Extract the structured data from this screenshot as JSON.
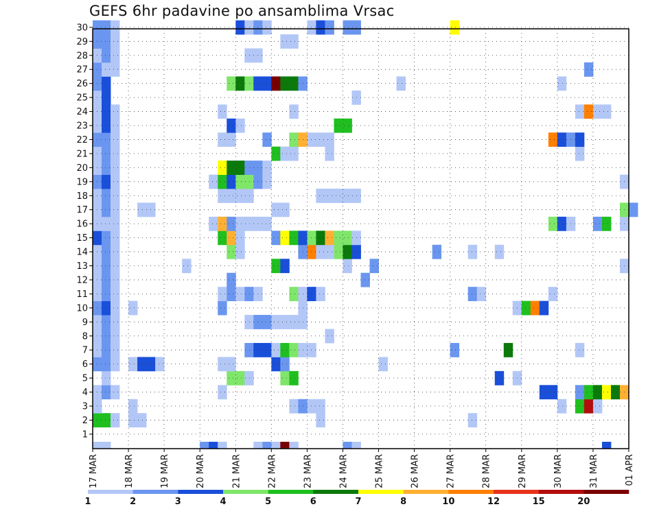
{
  "title": "GEFS 6hr padavine po ansamblima Vrsac",
  "chart_data": {
    "type": "heatmap",
    "title": "GEFS 6hr padavine po ansamblima Vrsac",
    "y_ticks": [
      "1",
      "2",
      "3",
      "4",
      "5",
      "6",
      "7",
      "8",
      "9",
      "10",
      "11",
      "12",
      "13",
      "14",
      "15",
      "16",
      "17",
      "18",
      "19",
      "20",
      "21",
      "22",
      "23",
      "24",
      "25",
      "26",
      "27",
      "28",
      "29",
      "30"
    ],
    "x_ticks": [
      "17 MAR",
      "18 MAR",
      "19 MAR",
      "20 MAR",
      "21 MAR",
      "22 MAR",
      "23 MAR",
      "24 MAR",
      "25 MAR",
      "26 MAR",
      "27 MAR",
      "28 MAR",
      "29 MAR",
      "30 MAR",
      "31 MAR",
      "01 APR"
    ],
    "colorbar": {
      "labels": [
        "1",
        "2",
        "3",
        "4",
        "5",
        "6",
        "7",
        "8",
        "10",
        "12",
        "15",
        "20"
      ],
      "colors": [
        "#b3c7f7",
        "#6a96f0",
        "#1a4fd9",
        "#7fe66a",
        "#1fbf1f",
        "#0b7a0b",
        "#ffff00",
        "#ffb032",
        "#ff7f00",
        "#e8321b",
        "#b30d0d",
        "#7a0000"
      ]
    },
    "grid": true,
    "steps_per_day": 4,
    "colour_scale": [
      "#b3c7f7",
      "#6a96f0",
      "#1a4fd9",
      "#7fe66a",
      "#1fbf1f",
      "#0b7a0b",
      "#ffff00",
      "#ffb032",
      "#ff7f00",
      "#e8321b",
      "#b30d0d",
      "#7a0000"
    ],
    "member_rows": {
      "30": [
        [
          0,
          2,
          2
        ],
        [
          2,
          1,
          1
        ],
        [
          16,
          1,
          3
        ],
        [
          17,
          1,
          1
        ],
        [
          18,
          1,
          2
        ],
        [
          19,
          1,
          1
        ],
        [
          24,
          1,
          1
        ],
        [
          25,
          1,
          3
        ],
        [
          26,
          1,
          2
        ],
        [
          28,
          2,
          2
        ],
        [
          40,
          1,
          7
        ]
      ],
      "29": [
        [
          0,
          2,
          2
        ],
        [
          2,
          1,
          1
        ],
        [
          21,
          2,
          1
        ]
      ],
      "28": [
        [
          0,
          1,
          1
        ],
        [
          1,
          1,
          2
        ],
        [
          2,
          1,
          1
        ],
        [
          17,
          2,
          1
        ]
      ],
      "27": [
        [
          0,
          1,
          2
        ],
        [
          1,
          2,
          1
        ],
        [
          55,
          1,
          2
        ]
      ],
      "26": [
        [
          0,
          1,
          2
        ],
        [
          1,
          1,
          3
        ],
        [
          15,
          1,
          4
        ],
        [
          16,
          1,
          6
        ],
        [
          17,
          1,
          4
        ],
        [
          18,
          2,
          3
        ],
        [
          20,
          1,
          12
        ],
        [
          21,
          2,
          6
        ],
        [
          23,
          1,
          2
        ],
        [
          34,
          1,
          1
        ],
        [
          52,
          1,
          1
        ]
      ],
      "25": [
        [
          0,
          1,
          1
        ],
        [
          1,
          1,
          3
        ],
        [
          29,
          1,
          1
        ]
      ],
      "24": [
        [
          0,
          1,
          1
        ],
        [
          1,
          1,
          3
        ],
        [
          2,
          1,
          1
        ],
        [
          14,
          1,
          1
        ],
        [
          22,
          1,
          1
        ],
        [
          54,
          1,
          1
        ],
        [
          55,
          1,
          9
        ],
        [
          56,
          2,
          1
        ]
      ],
      "23": [
        [
          0,
          1,
          1
        ],
        [
          1,
          1,
          3
        ],
        [
          2,
          1,
          1
        ],
        [
          15,
          1,
          3
        ],
        [
          16,
          1,
          1
        ],
        [
          27,
          2,
          5
        ]
      ],
      "22": [
        [
          0,
          2,
          2
        ],
        [
          2,
          1,
          1
        ],
        [
          14,
          2,
          1
        ],
        [
          19,
          1,
          2
        ],
        [
          22,
          1,
          4
        ],
        [
          23,
          1,
          8
        ],
        [
          24,
          3,
          1
        ],
        [
          51,
          1,
          9
        ],
        [
          52,
          1,
          3
        ],
        [
          53,
          1,
          2
        ],
        [
          54,
          1,
          3
        ]
      ],
      "21": [
        [
          0,
          1,
          1
        ],
        [
          1,
          1,
          2
        ],
        [
          2,
          1,
          1
        ],
        [
          20,
          1,
          5
        ],
        [
          21,
          2,
          1
        ],
        [
          26,
          1,
          1
        ],
        [
          54,
          1,
          1
        ]
      ],
      "20": [
        [
          0,
          1,
          1
        ],
        [
          1,
          1,
          2
        ],
        [
          2,
          1,
          1
        ],
        [
          14,
          1,
          7
        ],
        [
          15,
          2,
          6
        ],
        [
          17,
          2,
          2
        ],
        [
          19,
          1,
          1
        ]
      ],
      "19": [
        [
          0,
          1,
          2
        ],
        [
          1,
          1,
          3
        ],
        [
          2,
          1,
          1
        ],
        [
          13,
          1,
          1
        ],
        [
          14,
          1,
          5
        ],
        [
          15,
          1,
          3
        ],
        [
          16,
          2,
          4
        ],
        [
          18,
          1,
          2
        ],
        [
          19,
          1,
          1
        ],
        [
          59,
          1,
          1
        ]
      ],
      "18": [
        [
          0,
          1,
          1
        ],
        [
          1,
          1,
          2
        ],
        [
          2,
          1,
          1
        ],
        [
          14,
          4,
          1
        ],
        [
          25,
          3,
          1
        ],
        [
          28,
          2,
          1
        ]
      ],
      "17": [
        [
          0,
          1,
          1
        ],
        [
          1,
          1,
          2
        ],
        [
          2,
          1,
          1
        ],
        [
          5,
          2,
          1
        ],
        [
          20,
          2,
          1
        ],
        [
          59,
          1,
          4
        ],
        [
          60,
          1,
          2
        ]
      ],
      "16": [
        [
          0,
          2,
          1
        ],
        [
          2,
          1,
          1
        ],
        [
          13,
          1,
          1
        ],
        [
          14,
          1,
          8
        ],
        [
          15,
          1,
          2
        ],
        [
          16,
          4,
          1
        ],
        [
          51,
          1,
          4
        ],
        [
          52,
          1,
          3
        ],
        [
          53,
          1,
          1
        ],
        [
          56,
          1,
          2
        ],
        [
          57,
          1,
          5
        ],
        [
          59,
          1,
          1
        ]
      ],
      "15": [
        [
          0,
          1,
          3
        ],
        [
          1,
          1,
          2
        ],
        [
          2,
          1,
          1
        ],
        [
          14,
          1,
          5
        ],
        [
          15,
          1,
          8
        ],
        [
          16,
          1,
          1
        ],
        [
          20,
          1,
          2
        ],
        [
          21,
          1,
          7
        ],
        [
          22,
          1,
          5
        ],
        [
          23,
          1,
          3
        ],
        [
          24,
          1,
          4
        ],
        [
          25,
          1,
          6
        ],
        [
          26,
          1,
          8
        ],
        [
          27,
          2,
          4
        ],
        [
          29,
          1,
          1
        ]
      ],
      "14": [
        [
          0,
          1,
          1
        ],
        [
          1,
          1,
          2
        ],
        [
          2,
          1,
          1
        ],
        [
          15,
          1,
          4
        ],
        [
          16,
          1,
          1
        ],
        [
          23,
          1,
          2
        ],
        [
          24,
          1,
          9
        ],
        [
          25,
          2,
          1
        ],
        [
          27,
          1,
          4
        ],
        [
          28,
          1,
          6
        ],
        [
          29,
          1,
          3
        ],
        [
          38,
          1,
          2
        ],
        [
          42,
          1,
          1
        ],
        [
          45,
          1,
          1
        ]
      ],
      "13": [
        [
          0,
          1,
          1
        ],
        [
          1,
          1,
          2
        ],
        [
          2,
          1,
          1
        ],
        [
          10,
          1,
          1
        ],
        [
          20,
          1,
          5
        ],
        [
          21,
          1,
          3
        ],
        [
          28,
          1,
          1
        ],
        [
          31,
          1,
          2
        ],
        [
          59,
          1,
          1
        ]
      ],
      "12": [
        [
          0,
          1,
          1
        ],
        [
          1,
          1,
          2
        ],
        [
          2,
          1,
          1
        ],
        [
          15,
          1,
          2
        ],
        [
          30,
          1,
          2
        ]
      ],
      "11": [
        [
          0,
          1,
          1
        ],
        [
          1,
          1,
          2
        ],
        [
          2,
          1,
          1
        ],
        [
          14,
          1,
          1
        ],
        [
          15,
          1,
          2
        ],
        [
          16,
          1,
          1
        ],
        [
          17,
          1,
          2
        ],
        [
          18,
          1,
          1
        ],
        [
          22,
          1,
          4
        ],
        [
          23,
          1,
          1
        ],
        [
          24,
          1,
          3
        ],
        [
          25,
          1,
          1
        ],
        [
          42,
          1,
          2
        ],
        [
          43,
          1,
          1
        ],
        [
          51,
          1,
          1
        ]
      ],
      "10": [
        [
          0,
          1,
          2
        ],
        [
          1,
          1,
          3
        ],
        [
          2,
          1,
          1
        ],
        [
          4,
          1,
          1
        ],
        [
          14,
          1,
          2
        ],
        [
          23,
          1,
          1
        ],
        [
          47,
          1,
          1
        ],
        [
          48,
          1,
          5
        ],
        [
          49,
          1,
          9
        ],
        [
          50,
          1,
          3
        ]
      ],
      "9": [
        [
          0,
          1,
          1
        ],
        [
          1,
          1,
          2
        ],
        [
          2,
          1,
          1
        ],
        [
          17,
          1,
          1
        ],
        [
          18,
          2,
          2
        ],
        [
          20,
          4,
          1
        ]
      ],
      "8": [
        [
          0,
          1,
          1
        ],
        [
          1,
          1,
          2
        ],
        [
          2,
          1,
          1
        ],
        [
          26,
          1,
          1
        ]
      ],
      "7": [
        [
          0,
          1,
          1
        ],
        [
          1,
          1,
          2
        ],
        [
          2,
          1,
          1
        ],
        [
          17,
          1,
          2
        ],
        [
          18,
          2,
          3
        ],
        [
          20,
          1,
          1
        ],
        [
          21,
          1,
          5
        ],
        [
          22,
          1,
          4
        ],
        [
          23,
          2,
          1
        ],
        [
          40,
          1,
          2
        ],
        [
          46,
          1,
          6
        ],
        [
          54,
          1,
          1
        ]
      ],
      "6": [
        [
          0,
          2,
          2
        ],
        [
          2,
          1,
          1
        ],
        [
          4,
          1,
          1
        ],
        [
          5,
          2,
          3
        ],
        [
          7,
          1,
          1
        ],
        [
          14,
          2,
          1
        ],
        [
          20,
          1,
          3
        ],
        [
          21,
          1,
          2
        ],
        [
          32,
          1,
          1
        ]
      ],
      "5": [
        [
          1,
          1,
          1
        ],
        [
          15,
          1,
          4
        ],
        [
          16,
          1,
          4
        ],
        [
          17,
          1,
          1
        ],
        [
          21,
          1,
          4
        ],
        [
          22,
          1,
          5
        ],
        [
          45,
          1,
          3
        ],
        [
          47,
          1,
          1
        ]
      ],
      "4": [
        [
          0,
          1,
          1
        ],
        [
          1,
          1,
          2
        ],
        [
          2,
          1,
          1
        ],
        [
          14,
          1,
          1
        ],
        [
          50,
          2,
          3
        ],
        [
          54,
          1,
          2
        ],
        [
          55,
          1,
          5
        ],
        [
          56,
          1,
          6
        ],
        [
          57,
          1,
          7
        ],
        [
          58,
          1,
          6
        ],
        [
          59,
          1,
          8
        ]
      ],
      "3": [
        [
          0,
          1,
          1
        ],
        [
          4,
          1,
          1
        ],
        [
          22,
          1,
          1
        ],
        [
          23,
          1,
          2
        ],
        [
          24,
          2,
          1
        ],
        [
          52,
          1,
          1
        ],
        [
          54,
          1,
          5
        ],
        [
          55,
          1,
          11
        ],
        [
          56,
          1,
          1
        ]
      ],
      "2": [
        [
          0,
          2,
          5
        ],
        [
          2,
          1,
          1
        ],
        [
          4,
          2,
          1
        ],
        [
          25,
          1,
          1
        ],
        [
          42,
          1,
          1
        ]
      ]
    },
    "bottom_row": [
      [
        0,
        2,
        1
      ],
      [
        12,
        1,
        2
      ],
      [
        13,
        1,
        3
      ],
      [
        14,
        1,
        1
      ],
      [
        18,
        1,
        1
      ],
      [
        19,
        1,
        2
      ],
      [
        20,
        1,
        1
      ],
      [
        21,
        1,
        12
      ],
      [
        22,
        1,
        1
      ],
      [
        28,
        1,
        2
      ],
      [
        29,
        1,
        1
      ],
      [
        57,
        1,
        3
      ]
    ]
  }
}
